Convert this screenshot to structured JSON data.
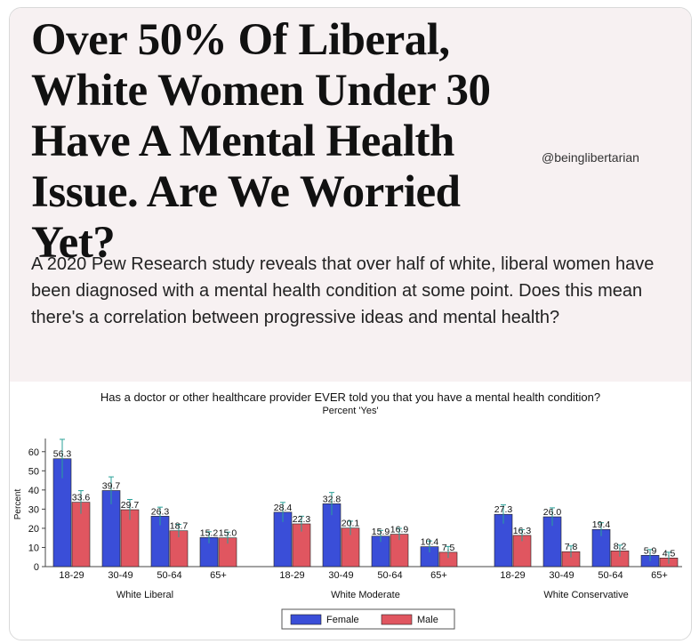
{
  "post": {
    "headline": "Over 50% Of Liberal, White Women Under 30 Have A Mental Health Issue. Are We Worried Yet?",
    "handle": "@beinglibertarian",
    "summary": "A 2020 Pew Research study reveals that over half of white, liberal women have been diagnosed with a mental health condition at some point. Does this mean there's a correlation between progressive ideas and mental health?"
  },
  "colors": {
    "female": "#3a4ed8",
    "male": "#e05660",
    "error_bar": "#2aa198",
    "background": "#f7f1f2"
  },
  "chart_data": {
    "type": "bar",
    "title": "Has a doctor or other healthcare provider EVER told you that you have a mental health condition?",
    "subtitle": "Percent 'Yes'",
    "ylabel": "Percent",
    "ylim": [
      0,
      65
    ],
    "yticks": [
      0,
      10,
      20,
      30,
      40,
      50,
      60
    ],
    "legend_position": "bottom",
    "series_names": [
      "Female",
      "Male"
    ],
    "groups": [
      {
        "name": "White Liberal",
        "categories": [
          "18-29",
          "30-49",
          "50-64",
          "65+"
        ],
        "female": [
          56.3,
          39.7,
          26.3,
          15.2
        ],
        "male": [
          33.6,
          29.7,
          18.7,
          15.0
        ],
        "female_labels": [
          "56.3",
          "39.7",
          "26.3",
          "15.2"
        ],
        "male_labels": [
          "33.6",
          "29.7",
          "18.7",
          "15.0"
        ]
      },
      {
        "name": "White Moderate",
        "categories": [
          "18-29",
          "30-49",
          "50-64",
          "65+"
        ],
        "female": [
          28.4,
          32.8,
          15.9,
          10.4
        ],
        "male": [
          22.3,
          20.1,
          16.9,
          7.5
        ],
        "female_labels": [
          "28.4",
          "32.8",
          "15.9",
          "10.4"
        ],
        "male_labels": [
          "22.3",
          "20.1",
          "16.9",
          "7.5"
        ]
      },
      {
        "name": "White Conservative",
        "categories": [
          "18-29",
          "30-49",
          "50-64",
          "65+"
        ],
        "female": [
          27.3,
          26.0,
          19.4,
          5.9
        ],
        "male": [
          16.3,
          7.8,
          8.2,
          4.5
        ],
        "female_labels": [
          "27.3",
          "26.0",
          "19.4",
          "5.9"
        ],
        "male_labels": [
          "16.3",
          "7.8",
          "8.2",
          "4.5"
        ]
      }
    ]
  }
}
